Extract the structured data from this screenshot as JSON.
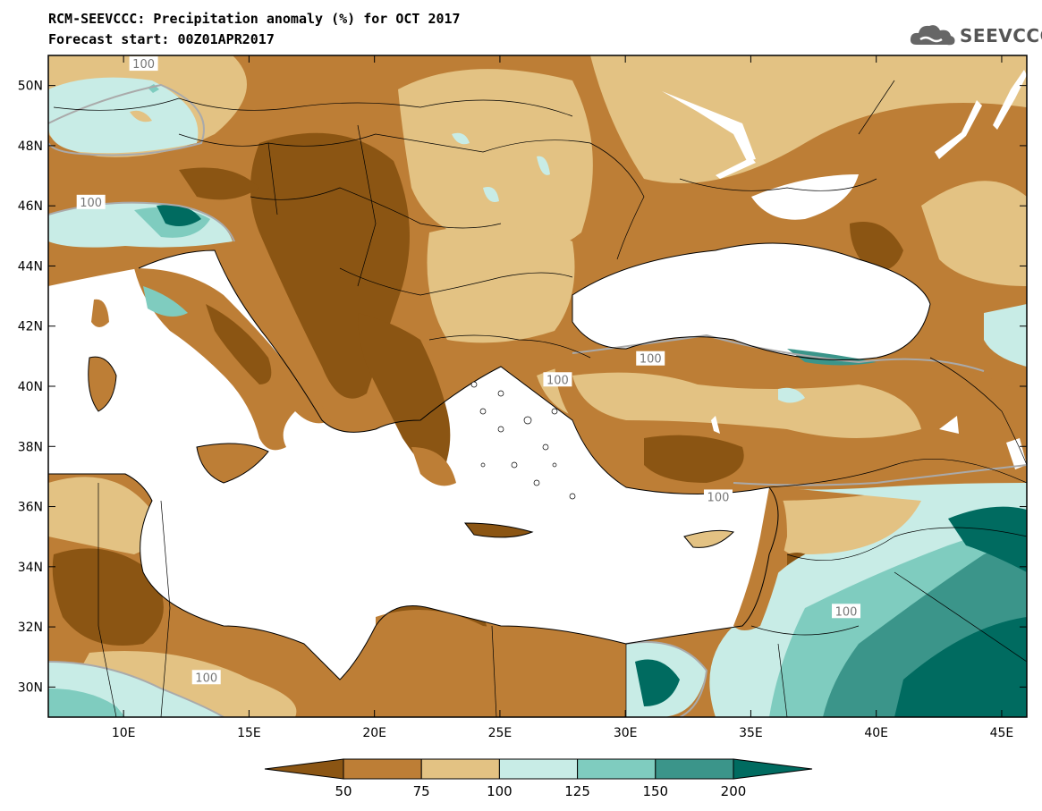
{
  "header": {
    "title": "RCM-SEEVCCC: Precipitation anomaly (%) for OCT 2017",
    "subtitle": "Forecast start: 00Z01APR2017",
    "logo_text": "SEEVCCC"
  },
  "map": {
    "lon_range": [
      7,
      46
    ],
    "lat_range": [
      29,
      51
    ],
    "lon_ticks": [
      "10E",
      "15E",
      "20E",
      "25E",
      "30E",
      "35E",
      "40E",
      "45E"
    ],
    "lat_ticks": [
      "50N",
      "48N",
      "46N",
      "44N",
      "42N",
      "40N",
      "38N",
      "36N",
      "34N",
      "32N",
      "30N"
    ],
    "contour_label": "100",
    "contour_labels": [
      {
        "text": "100",
        "lon": 10.8,
        "lat": 50.7
      },
      {
        "text": "100",
        "lon": 8.7,
        "lat": 46.1
      },
      {
        "text": "100",
        "lon": 31.0,
        "lat": 40.9
      },
      {
        "text": "100",
        "lon": 27.3,
        "lat": 40.2
      },
      {
        "text": "100",
        "lon": 33.7,
        "lat": 36.3
      },
      {
        "text": "100",
        "lon": 38.8,
        "lat": 32.5
      },
      {
        "text": "100",
        "lon": 13.3,
        "lat": 30.3
      }
    ]
  },
  "colorbar": {
    "colors": [
      "#8b5513",
      "#bd7e36",
      "#e3c283",
      "#c8ece6",
      "#7fccbf",
      "#3b958a",
      "#006b60"
    ],
    "labels": [
      "50",
      "75",
      "100",
      "125",
      "150",
      "200"
    ]
  }
}
